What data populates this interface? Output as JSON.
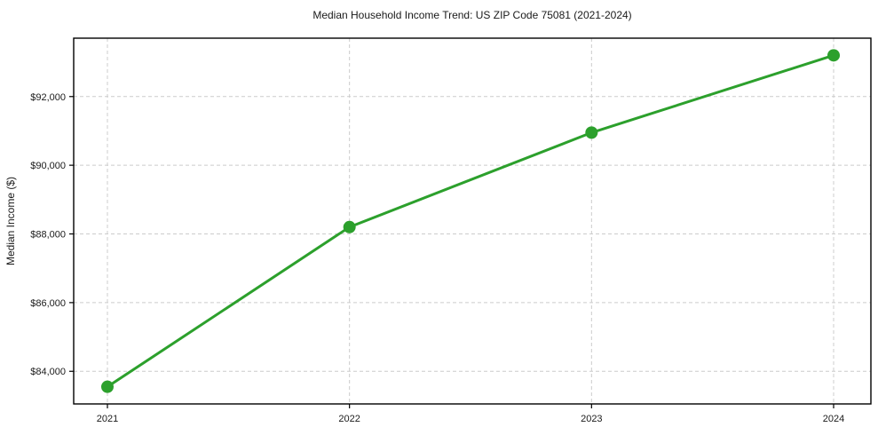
{
  "page": {
    "title": "Median Household Income Trend: US ZIP Code 75081 (2021-2024)"
  },
  "colors": {
    "line": "#2ca02c",
    "marker": "#2ca02c",
    "grid": "#cccccc",
    "axis_border": "#000000",
    "text": "#1a1a1a",
    "background": "#ffffff"
  },
  "chart_data": {
    "type": "line",
    "title": "Median Household Income Trend: US ZIP Code 75081 (2021-2024)",
    "xlabel": "",
    "ylabel": "Median Income ($)",
    "x": [
      2021,
      2022,
      2023,
      2024
    ],
    "x_tick_labels": [
      "2021",
      "2022",
      "2023",
      "2024"
    ],
    "series": [
      {
        "name": "Median Household Income",
        "values": [
          83550,
          88200,
          90950,
          93200
        ]
      }
    ],
    "y_ticks": [
      84000,
      86000,
      88000,
      90000,
      92000
    ],
    "y_tick_labels": [
      "$84,000",
      "$86,000",
      "$88,000",
      "$90,000",
      "$92,000"
    ],
    "ylim": [
      83050,
      93700
    ],
    "grid": true,
    "grid_style": "dashed",
    "legend": false,
    "legend_position": "none",
    "marker": "circle"
  }
}
